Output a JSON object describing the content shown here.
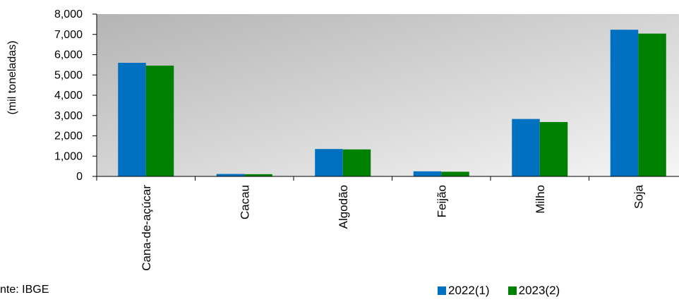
{
  "chart_data": {
    "type": "bar",
    "categories": [
      "Cana-de-açúcar",
      "Cacau",
      "Algodão",
      "Feijão",
      "Milho",
      "Soja"
    ],
    "series": [
      {
        "name": "2022(1)",
        "color": "#0070C0",
        "values": [
          5600,
          120,
          1350,
          250,
          2830,
          7230
        ]
      },
      {
        "name": "2023(2)",
        "color": "#008000",
        "values": [
          5460,
          110,
          1330,
          230,
          2680,
          7040
        ]
      }
    ],
    "ylabel": "(mil toneladas)",
    "ylim": [
      0,
      8000
    ],
    "yticks": [
      "0",
      "1,000",
      "2,000",
      "3,000",
      "4,000",
      "5,000",
      "6,000",
      "7,000",
      "8,000"
    ],
    "legend_position": "bottom-right",
    "plot_background": "gradient-gray"
  },
  "source_text": "nte: IBGE"
}
